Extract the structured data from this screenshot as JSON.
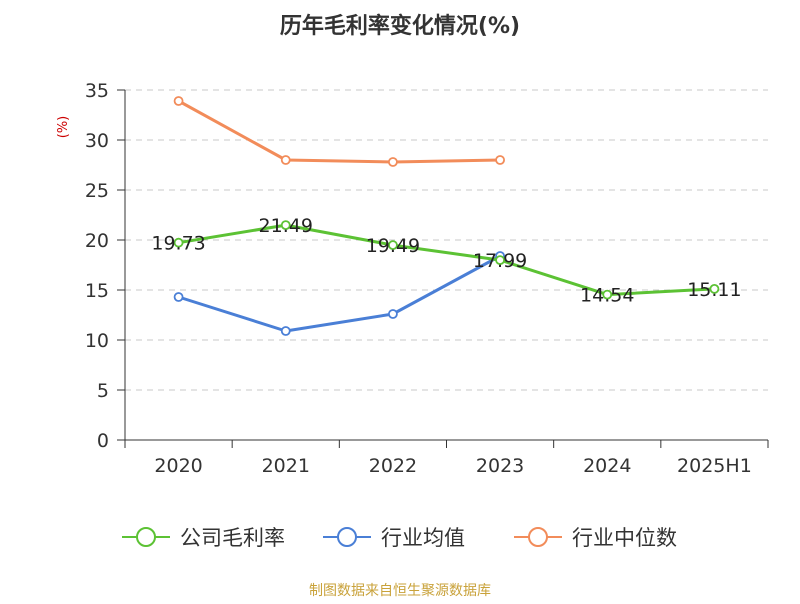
{
  "chart_data": {
    "type": "line",
    "title": "历年毛利率变化情况(%)",
    "ylabel": "(%)",
    "xlabel": "",
    "categories": [
      "2020",
      "2021",
      "2022",
      "2023",
      "2024",
      "2025H1"
    ],
    "ylim": [
      0,
      35
    ],
    "yticks": [
      0,
      5,
      10,
      15,
      20,
      25,
      30,
      35
    ],
    "grid": true,
    "legend_position": "bottom",
    "series": [
      {
        "name": "公司毛利率",
        "color": "#5cc234",
        "values": [
          19.73,
          21.49,
          19.49,
          17.99,
          14.54,
          15.11
        ],
        "show_labels": true
      },
      {
        "name": "行业均值",
        "color": "#4a7fd6",
        "values": [
          14.3,
          10.9,
          12.6,
          18.4,
          null,
          null
        ],
        "show_labels": false
      },
      {
        "name": "行业中位数",
        "color": "#f28c5a",
        "values": [
          33.9,
          28.0,
          27.8,
          28.0,
          null,
          null
        ],
        "show_labels": false
      }
    ]
  },
  "ylabel_color": "#cc0000",
  "source": {
    "text": "制图数据来自恒生聚源数据库",
    "color": "#c9a23a"
  }
}
